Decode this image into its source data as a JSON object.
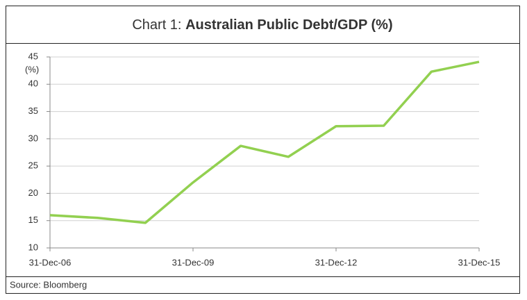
{
  "chart_data": {
    "type": "line",
    "title_label": "Chart 1:",
    "title": "Australian Public Debt/GDP (%)",
    "y_label": "(%)",
    "source": "Source: Bloomberg",
    "categories": [
      "31-Dec-06",
      null,
      null,
      "31-Dec-09",
      null,
      null,
      "31-Dec-12",
      null,
      null,
      "31-Dec-15"
    ],
    "series": [
      {
        "name": "Australian Public Debt/GDP",
        "color": "#92d050",
        "values": [
          16.0,
          15.5,
          14.6,
          22.0,
          28.7,
          26.7,
          32.3,
          32.4,
          42.3,
          44.1
        ]
      }
    ],
    "ylim": [
      10,
      45
    ],
    "yticks": [
      10,
      15,
      20,
      25,
      30,
      35,
      40,
      45
    ],
    "grid": true
  }
}
